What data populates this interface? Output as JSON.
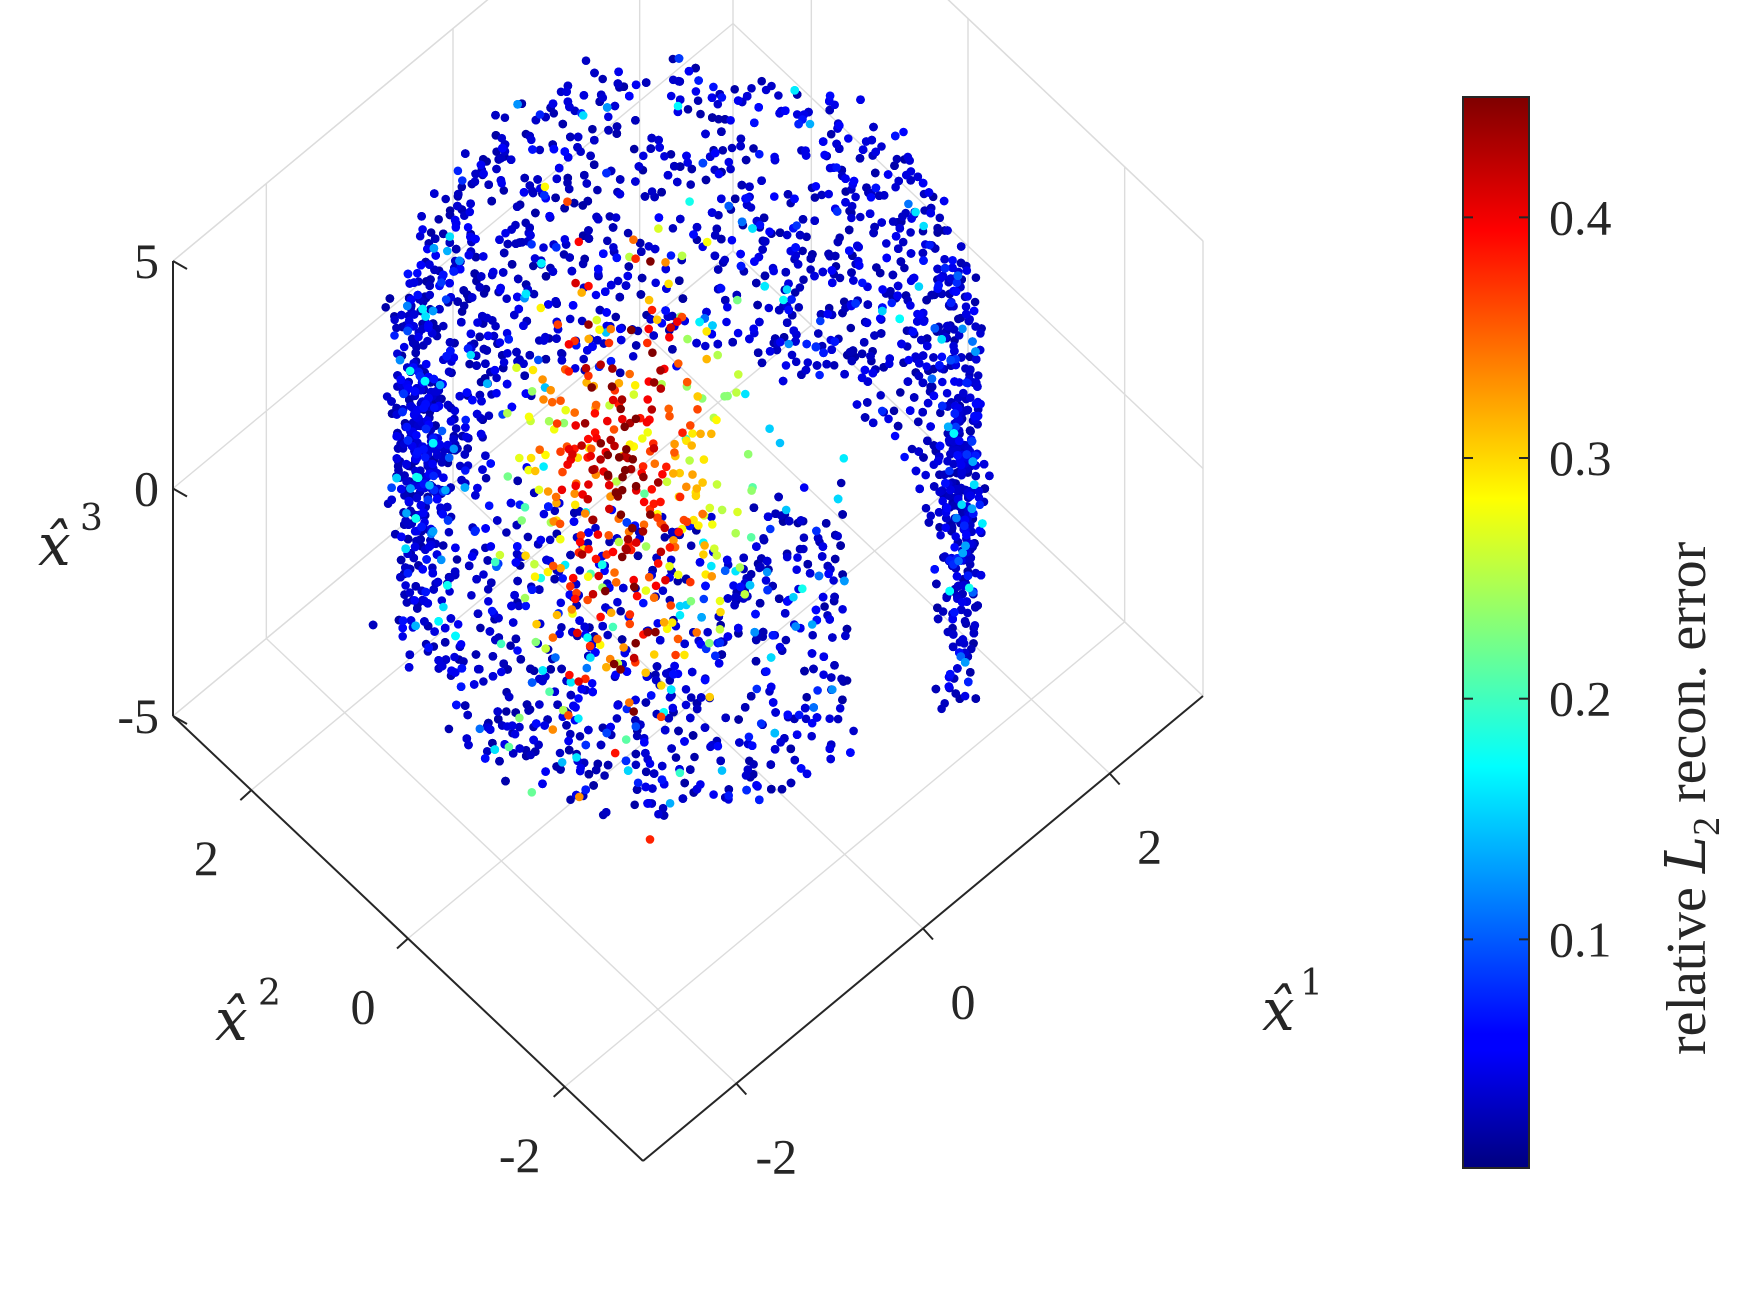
{
  "chart_data": {
    "type": "scatter",
    "dimensions": 3,
    "colormap": "jet",
    "axes": {
      "x": {
        "label_base": "x̂",
        "label_sup": "1",
        "ticks": [
          "-2",
          "0",
          "2"
        ],
        "tick_values": [
          -2,
          0,
          2
        ]
      },
      "y": {
        "label_base": "x̂",
        "label_sup": "2",
        "ticks": [
          "-2",
          "0",
          "2"
        ],
        "tick_values": [
          -2,
          0,
          2
        ]
      },
      "z": {
        "label_base": "x̂",
        "label_sup": "3",
        "ticks": [
          "-5",
          "0",
          "5"
        ],
        "tick_values": [
          -5,
          0,
          5
        ]
      }
    },
    "xlim": [
      -3,
      3
    ],
    "ylim": [
      -3,
      3
    ],
    "zlim": [
      -5,
      5
    ],
    "grid": true,
    "colorbar": {
      "label_prefix": "relative ",
      "label_var": "L",
      "label_sub": "2",
      "label_suffix": " recon. error",
      "ticks": [
        "0.1",
        "0.2",
        "0.3",
        "0.4"
      ],
      "tick_values": [
        0.1,
        0.2,
        0.3,
        0.4
      ],
      "range": [
        0.005,
        0.45
      ],
      "placement": "right"
    },
    "series": [
      {
        "description_shape": "twisted ring of points colored by reconstruction error",
        "approx_point_count": 6000,
        "error_typical": 0.05,
        "error_max": 0.45
      }
    ]
  }
}
